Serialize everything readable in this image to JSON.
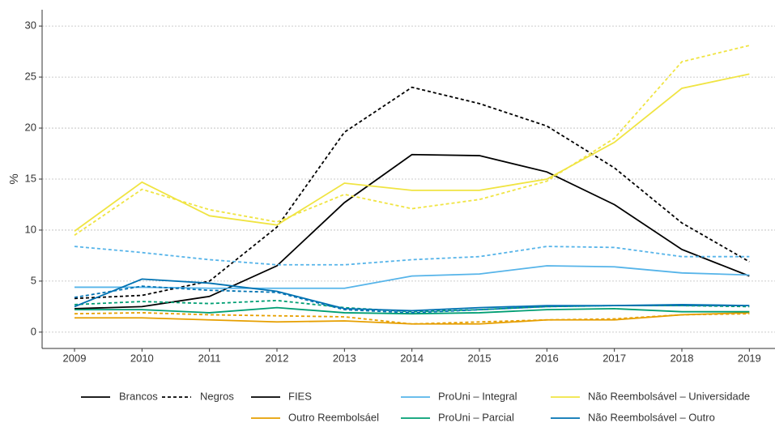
{
  "chart_data": {
    "type": "line",
    "ylabel": "%",
    "x": [
      2009,
      2010,
      2011,
      2012,
      2013,
      2014,
      2015,
      2016,
      2017,
      2018,
      2019
    ],
    "xlim": [
      2008.52,
      2019.38
    ],
    "xticks": [
      2009,
      2010,
      2011,
      2012,
      2013,
      2014,
      2015,
      2016,
      2017,
      2018,
      2019
    ],
    "ylim": [
      -1.6,
      31.6
    ],
    "yticks": [
      0,
      5,
      10,
      15,
      20,
      25,
      30
    ],
    "grid": true,
    "legend": "bottom",
    "linetypes": [
      {
        "name": "Brancos",
        "dash": "solid"
      },
      {
        "name": "Negros",
        "dash": "dashed"
      }
    ],
    "series": [
      {
        "name": "FIES",
        "color": "#000000",
        "values": [
          [
            2.3,
            2.5,
            3.5,
            6.5,
            12.7,
            17.4,
            17.3,
            15.7,
            12.5,
            8.1,
            5.5
          ],
          [
            3.3,
            3.6,
            5.0,
            10.3,
            19.6,
            24.0,
            22.4,
            20.2,
            16.1,
            10.7,
            6.9
          ]
        ]
      },
      {
        "name": "Outro Reembolsáel",
        "color": "#E69F00",
        "values": [
          [
            1.4,
            1.4,
            1.2,
            1.0,
            1.1,
            0.8,
            0.8,
            1.2,
            1.2,
            1.7,
            1.9
          ],
          [
            1.8,
            1.9,
            1.7,
            1.6,
            1.5,
            0.8,
            1.0,
            1.2,
            1.3,
            1.7,
            1.8
          ]
        ]
      },
      {
        "name": "ProUni – Integral",
        "color": "#56B4E9",
        "values": [
          [
            4.4,
            4.4,
            4.3,
            4.3,
            4.3,
            5.5,
            5.7,
            6.5,
            6.4,
            5.8,
            5.6
          ],
          [
            8.4,
            7.8,
            7.1,
            6.6,
            6.6,
            7.1,
            7.4,
            8.4,
            8.3,
            7.4,
            7.4
          ]
        ]
      },
      {
        "name": "ProUni – Parcial",
        "color": "#009E73",
        "values": [
          [
            2.2,
            2.2,
            1.9,
            2.4,
            1.9,
            1.8,
            1.9,
            2.2,
            2.3,
            2.0,
            2.0
          ],
          [
            2.7,
            3.0,
            2.8,
            3.1,
            2.4,
            2.0,
            2.2,
            2.5,
            2.6,
            2.6,
            2.5
          ]
        ]
      },
      {
        "name": "Não Reembolsável – Universidade",
        "color": "#F0E442",
        "values": [
          [
            9.9,
            14.7,
            11.4,
            10.5,
            14.6,
            13.9,
            13.9,
            15.0,
            18.6,
            23.9,
            25.3
          ],
          [
            9.5,
            14.0,
            12.0,
            10.8,
            13.5,
            12.1,
            13.0,
            14.8,
            19.0,
            26.5,
            28.1
          ]
        ]
      },
      {
        "name": "Não Reembolsável – Outro",
        "color": "#0072B2",
        "values": [
          [
            2.5,
            5.2,
            4.8,
            4.0,
            2.3,
            2.1,
            2.4,
            2.6,
            2.6,
            2.7,
            2.6
          ],
          [
            3.4,
            4.5,
            4.1,
            3.9,
            2.2,
            1.9,
            2.2,
            2.5,
            2.6,
            2.6,
            2.6
          ]
        ]
      }
    ]
  }
}
